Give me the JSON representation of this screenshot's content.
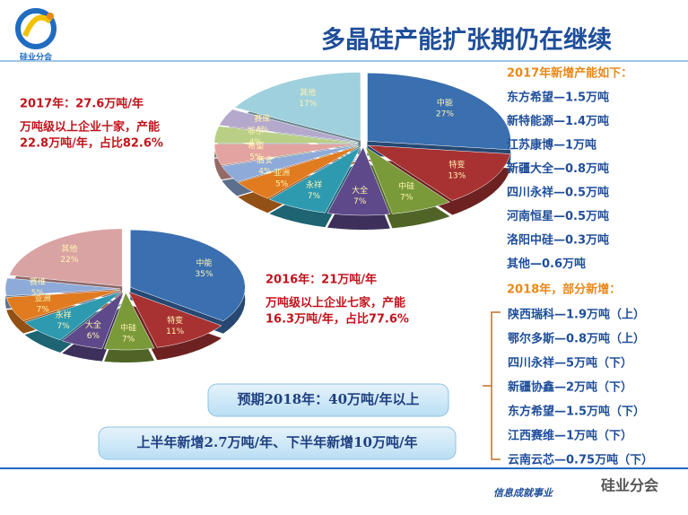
{
  "slide": {
    "title": "多晶硅产能扩张期仍在继续",
    "logo_text": "硅业分会",
    "left2017": [
      "2017年：27.6万吨/年",
      "万吨级以上企业十家，产能",
      "22.8万吨/年，占比82.6%"
    ],
    "left2016": [
      "2016年：21万吨/年",
      "万吨级以上企业七家，产能",
      "16.3万吨/年，占比77.6%"
    ],
    "list2017": {
      "heading": "2017年新增产能如下：",
      "items": [
        "东方希望—1.5万吨",
        "新特能源—1.4万吨",
        "江苏康博—1万吨",
        "新疆大全—0.8万吨",
        "四川永祥—0.5万吨",
        "河南恒星—0.5万吨",
        "洛阳中硅—0.3万吨",
        "其他—0.6万吨"
      ]
    },
    "list2018": {
      "heading": "2018年，部分新增：",
      "items": [
        "陕西瑞科—1.9万吨（上）",
        "鄂尔多斯—0.8万吨（上）",
        "四川永祥—5万吨（下）",
        "新疆协鑫—2万吨（下）",
        "东方希望—1.5万吨（下）",
        "江西赛维—1万吨（下）",
        "云南云芯—0.75万吨（下）"
      ]
    },
    "box1": "预期2018年：40万吨/年以上",
    "box2": "上半年新增2.7万吨/年、下半年新增10万吨/年",
    "footer": "信息成就事业",
    "watermark": "硅业分会"
  },
  "chart_data": [
    {
      "type": "pie",
      "categories": [
        "中能",
        "特变",
        "中硅",
        "大全",
        "永祥",
        "亚洲",
        "盾安",
        "希望",
        "鄂尔",
        "赛维",
        "其他"
      ],
      "values": [
        27,
        13,
        7,
        7,
        7,
        5,
        4,
        5,
        4,
        4,
        17
      ],
      "value_labels": [
        "27%",
        "13%",
        "7%",
        "7%",
        "7%",
        "5%",
        "4%",
        "5%",
        "4%",
        "4%",
        "17%"
      ],
      "colors": [
        "#3a6fb0",
        "#a83232",
        "#7a9a3a",
        "#5e4a8a",
        "#2e9ab0",
        "#e07b20",
        "#8eaad8",
        "#e3a3a0",
        "#b9cf86",
        "#b4a8cc",
        "#9fd0dd"
      ]
    },
    {
      "type": "pie",
      "categories": [
        "中能",
        "特变",
        "中硅",
        "大全",
        "永祥",
        "亚洲",
        "赛维",
        "其他"
      ],
      "values": [
        35,
        11,
        7,
        6,
        7,
        7,
        5,
        22
      ],
      "value_labels": [
        "35%",
        "11%",
        "7%",
        "6%",
        "7%",
        "7%",
        "5%",
        "22%"
      ],
      "colors": [
        "#3a6fb0",
        "#a83232",
        "#7a9a3a",
        "#5e4a8a",
        "#2e9ab0",
        "#e07b20",
        "#8eaad8",
        "#d9a3a3"
      ]
    }
  ]
}
